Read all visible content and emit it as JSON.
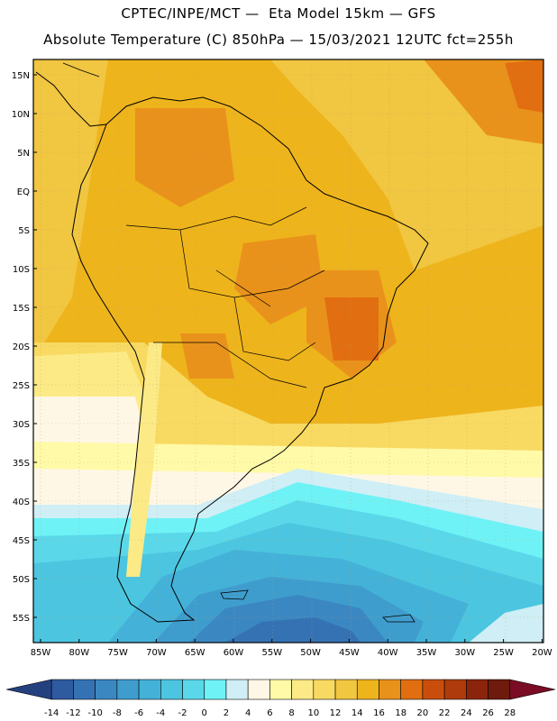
{
  "header": {
    "line1": "CPTEC/INPE/MCT —  Eta Model 15km — GFS",
    "line2": "Absolute Temperature (C) 850hPa — 15/03/2021 12UTC fct=255h"
  },
  "map": {
    "lat_labels": [
      "15N",
      "10N",
      "5N",
      "EQ",
      "5S",
      "10S",
      "15S",
      "20S",
      "25S",
      "30S",
      "35S",
      "40S",
      "45S",
      "50S",
      "55S"
    ],
    "lon_labels": [
      "85W",
      "80W",
      "75W",
      "70W",
      "65W",
      "60W",
      "55W",
      "50W",
      "45W",
      "40W",
      "35W",
      "30W",
      "25W",
      "20W"
    ]
  },
  "colorbar": {
    "labels": [
      "-14",
      "-12",
      "-10",
      "-8",
      "-6",
      "-4",
      "-2",
      "0",
      "2",
      "4",
      "6",
      "8",
      "10",
      "12",
      "14",
      "16",
      "18",
      "20",
      "22",
      "24",
      "26",
      "28"
    ],
    "colors": [
      "#24407f",
      "#2e5aa0",
      "#3572b4",
      "#3b87c2",
      "#3f9dcd",
      "#44b2d8",
      "#4cc6e0",
      "#5ad8ea",
      "#6ff2f6",
      "#cfeef5",
      "#fff7e6",
      "#fffaa8",
      "#fbea86",
      "#f8da62",
      "#f1c640",
      "#eeb41c",
      "#e9921b",
      "#e16e11",
      "#c94e0c",
      "#ad3b0c",
      "#8b240c",
      "#6e1a0c",
      "#7a0c25"
    ]
  }
}
